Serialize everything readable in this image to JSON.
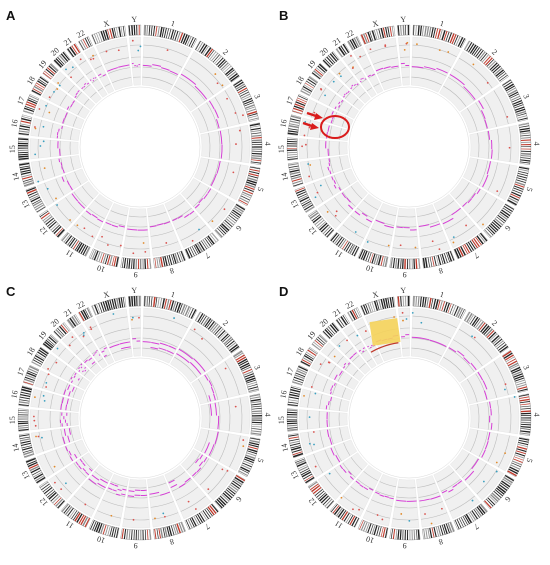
{
  "figure": {
    "chromosomes": [
      "1",
      "2",
      "3",
      "4",
      "5",
      "6",
      "7",
      "8",
      "9",
      "10",
      "11",
      "12",
      "13",
      "14",
      "15",
      "16",
      "17",
      "18",
      "19",
      "20",
      "21",
      "22",
      "X",
      "Y"
    ],
    "panels": [
      {
        "letter": "A",
        "highlight": "none"
      },
      {
        "letter": "B",
        "highlight": "arrows-and-ellipse"
      },
      {
        "letter": "C",
        "highlight": "none"
      },
      {
        "letter": "D",
        "highlight": "yellow-box"
      }
    ],
    "colors": {
      "ideogram_band": "#222222",
      "ideogram_red": "#c0392b",
      "track_bg": "#f0f0f0",
      "cnv_line": "#d63fd6",
      "grid_line": "#bdbdbd",
      "arrow_red": "#d91c1c",
      "highlight_yellow": "#f5d35a"
    }
  }
}
